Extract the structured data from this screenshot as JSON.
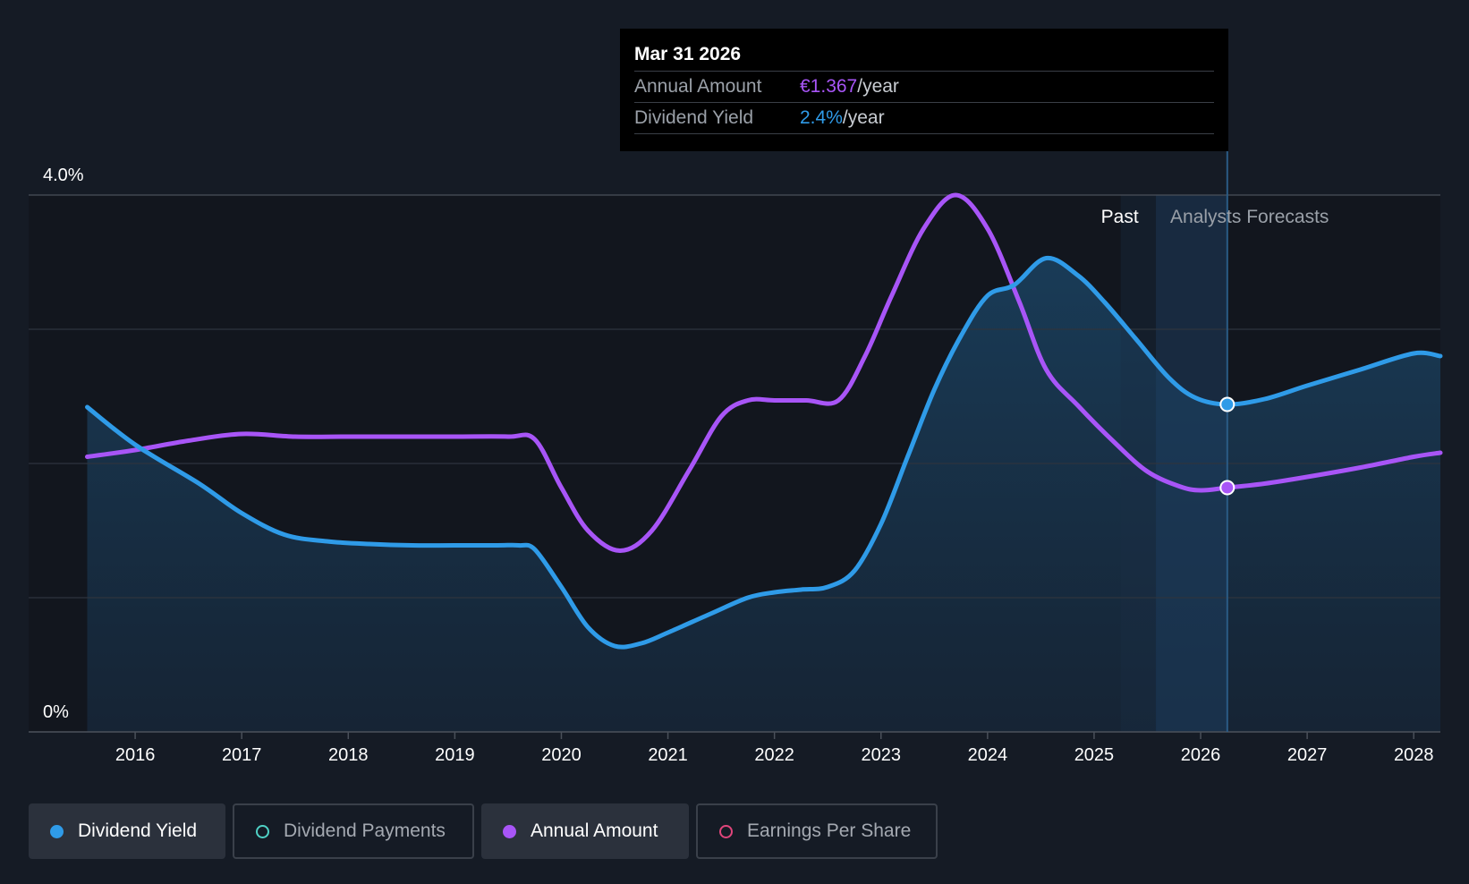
{
  "tooltip": {
    "date": "Mar 31 2026",
    "rows": [
      {
        "label": "Annual Amount",
        "value": "€1.367",
        "unit": "/year"
      },
      {
        "label": "Dividend Yield",
        "value": "2.4%",
        "unit": "/year"
      }
    ]
  },
  "regions": {
    "past": "Past",
    "forecast": "Analysts Forecasts"
  },
  "legend": [
    {
      "label": "Dividend Yield",
      "color": "#2f9be8",
      "active": true
    },
    {
      "label": "Dividend Payments",
      "color": "#4fd1c5",
      "active": false
    },
    {
      "label": "Annual Amount",
      "color": "#a855f7",
      "active": true
    },
    {
      "label": "Earnings Per Share",
      "color": "#e0457b",
      "active": false
    }
  ],
  "chart_data": {
    "type": "line",
    "y_ticks": [
      "4.0%",
      "0%"
    ],
    "ylim": [
      0,
      4.0
    ],
    "xlim": [
      2015.0,
      2028.25
    ],
    "x_tick_labels": [
      "2016",
      "2017",
      "2018",
      "2019",
      "2020",
      "2021",
      "2022",
      "2023",
      "2024",
      "2025",
      "2026",
      "2027",
      "2028"
    ],
    "past_end": 2025.25,
    "forecast_start": 2025.58,
    "marker_date": 2026.25,
    "grid": true,
    "series": [
      {
        "name": "Dividend Yield",
        "color": "#2f9be8",
        "x": [
          2015.55,
          2016.0,
          2016.6,
          2017.0,
          2017.4,
          2017.8,
          2018.2,
          2018.6,
          2019.0,
          2019.4,
          2019.6,
          2019.75,
          2020.0,
          2020.25,
          2020.5,
          2020.75,
          2021.0,
          2021.4,
          2021.75,
          2022.0,
          2022.25,
          2022.5,
          2022.75,
          2023.0,
          2023.25,
          2023.5,
          2023.75,
          2024.0,
          2024.25,
          2024.55,
          2024.85,
          2025.1,
          2025.4,
          2025.7,
          2025.95,
          2026.25,
          2026.6,
          2027.0,
          2027.5,
          2028.0,
          2028.25
        ],
        "y": [
          2.42,
          2.14,
          1.85,
          1.63,
          1.47,
          1.42,
          1.4,
          1.39,
          1.39,
          1.39,
          1.39,
          1.36,
          1.08,
          0.78,
          0.64,
          0.66,
          0.74,
          0.88,
          1.0,
          1.04,
          1.06,
          1.08,
          1.2,
          1.55,
          2.05,
          2.55,
          2.95,
          3.25,
          3.33,
          3.53,
          3.4,
          3.2,
          2.92,
          2.64,
          2.49,
          2.44,
          2.48,
          2.58,
          2.7,
          2.82,
          2.8
        ]
      },
      {
        "name": "Annual Amount",
        "color": "#a855f7",
        "x": [
          2015.55,
          2016.0,
          2016.5,
          2017.0,
          2017.5,
          2018.0,
          2018.5,
          2019.0,
          2019.5,
          2019.75,
          2020.0,
          2020.25,
          2020.55,
          2020.85,
          2021.2,
          2021.5,
          2021.75,
          2022.0,
          2022.3,
          2022.6,
          2022.85,
          2023.1,
          2023.4,
          2023.7,
          2024.0,
          2024.3,
          2024.55,
          2024.85,
          2025.2,
          2025.5,
          2025.8,
          2026.0,
          2026.25,
          2026.6,
          2027.0,
          2027.5,
          2028.0,
          2028.25
        ],
        "y": [
          2.05,
          2.1,
          2.17,
          2.22,
          2.2,
          2.2,
          2.2,
          2.2,
          2.2,
          2.18,
          1.82,
          1.5,
          1.35,
          1.5,
          1.95,
          2.35,
          2.47,
          2.47,
          2.47,
          2.47,
          2.8,
          3.25,
          3.75,
          4.0,
          3.75,
          3.2,
          2.7,
          2.43,
          2.15,
          1.94,
          1.83,
          1.8,
          1.82,
          1.85,
          1.9,
          1.97,
          2.05,
          2.08
        ]
      }
    ],
    "markers": [
      {
        "series": "Dividend Yield",
        "x": 2026.25,
        "y": 2.44
      },
      {
        "series": "Annual Amount",
        "x": 2026.25,
        "y": 1.82
      }
    ]
  }
}
